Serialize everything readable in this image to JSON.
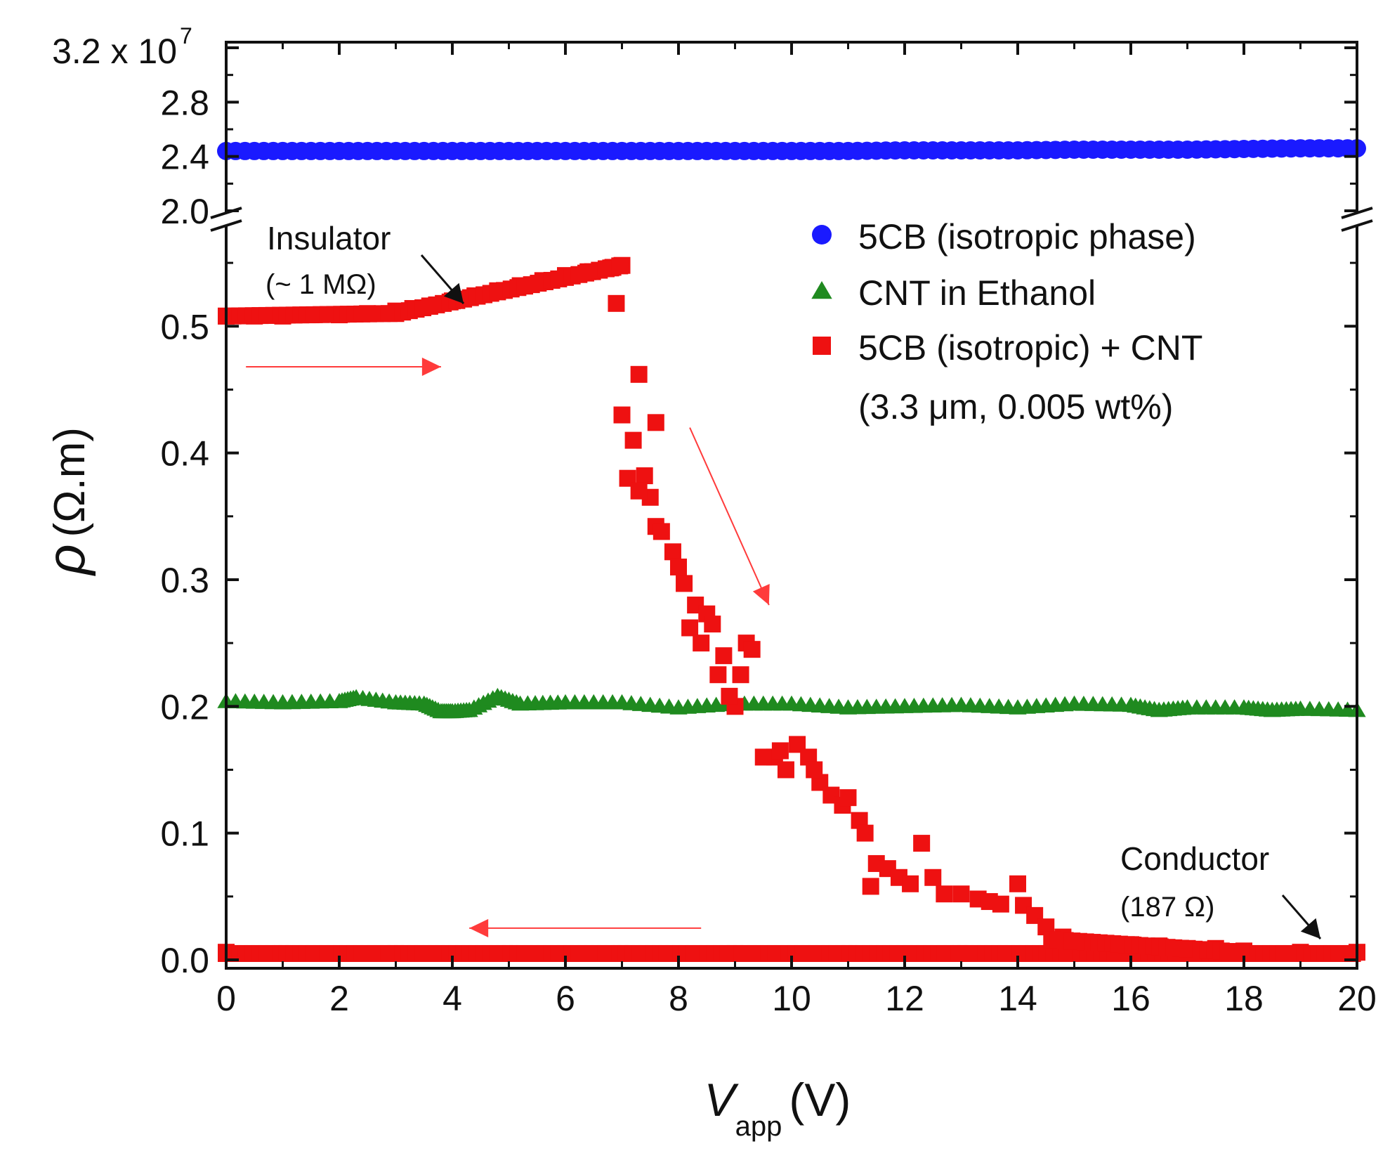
{
  "chart_data": {
    "type": "scatter",
    "title": "",
    "xlabel_symbol": "V",
    "xlabel_sub": "app",
    "xlabel_unit": "(V)",
    "ylabel_symbol": "ρ",
    "ylabel_unit": "(Ω.m)",
    "xlim": [
      0,
      20
    ],
    "x_ticks": [
      "0",
      "2",
      "4",
      "6",
      "8",
      "10",
      "12",
      "14",
      "16",
      "18",
      "20"
    ],
    "ylim_lower": [
      0,
      0.58
    ],
    "y_ticks_lower": [
      "0.0",
      "0.1",
      "0.2",
      "0.3",
      "0.4",
      "0.5"
    ],
    "ylim_upper": [
      2.0,
      3.2
    ],
    "y_ticks_upper": [
      "3.2 x 10",
      "2.8",
      "2.4",
      "2.0"
    ],
    "y_upper_exponent": "7",
    "y_break": true,
    "legend_position": "top-right",
    "series": [
      {
        "name": "5CB (isotropic phase)",
        "marker": "circle",
        "color": "#1a1aff",
        "panel": "upper",
        "x": [
          0,
          1,
          2,
          3,
          4,
          5,
          6,
          7,
          8,
          9,
          10,
          11,
          12,
          13,
          14,
          15,
          16,
          17,
          18,
          19,
          20
        ],
        "y": [
          2.44,
          2.44,
          2.44,
          2.44,
          2.44,
          2.44,
          2.44,
          2.44,
          2.44,
          2.44,
          2.44,
          2.44,
          2.445,
          2.445,
          2.445,
          2.45,
          2.45,
          2.45,
          2.455,
          2.46,
          2.46
        ]
      },
      {
        "name": "CNT in Ethanol",
        "marker": "triangle",
        "color": "#1f8a1f",
        "panel": "lower",
        "x": [
          0,
          1,
          2,
          2.3,
          3,
          3.5,
          3.8,
          4,
          4.3,
          4.8,
          5.2,
          6,
          7,
          8,
          9,
          10,
          11,
          12,
          13,
          14,
          15,
          16,
          16.5,
          17,
          18,
          18.5,
          19,
          20
        ],
        "y": [
          0.204,
          0.203,
          0.204,
          0.207,
          0.203,
          0.202,
          0.196,
          0.196,
          0.197,
          0.208,
          0.202,
          0.203,
          0.203,
          0.199,
          0.202,
          0.202,
          0.199,
          0.2,
          0.201,
          0.199,
          0.202,
          0.201,
          0.197,
          0.199,
          0.199,
          0.197,
          0.198,
          0.197
        ]
      },
      {
        "name": "5CB (isotropic) + CNT",
        "name_line2": "(3.3 μm, 0.005 wt%)",
        "marker": "square",
        "color": "#ee1111",
        "panel": "lower",
        "x": [
          0,
          0.5,
          1,
          1.5,
          2,
          2.5,
          3,
          3.3,
          3.6,
          4,
          4.4,
          4.8,
          5.2,
          5.6,
          6,
          6.4,
          6.8,
          7,
          6.9,
          7.3,
          7,
          7.6,
          7.2,
          7.1,
          7.4,
          7.5,
          7.3,
          7.6,
          7.7,
          7.9,
          8,
          8.1,
          8.3,
          8.2,
          8.5,
          8.6,
          8.4,
          8.8,
          8.7,
          9,
          9.2,
          9.1,
          8.9,
          9.3,
          9.7,
          9.5,
          9.9,
          10.1,
          9.8,
          10.3,
          10.5,
          10.4,
          10.7,
          10.9,
          11,
          11.2,
          11.3,
          11.5,
          11.4,
          11.7,
          11.9,
          12.1,
          12.3,
          12.5,
          12.7,
          13,
          13.3,
          13.5,
          13.7,
          14,
          14.1,
          14.3,
          14.5,
          14.8,
          15,
          15.5,
          16,
          16.5,
          17,
          17.5,
          18,
          19,
          20,
          19,
          17,
          15,
          13,
          11,
          9,
          7,
          5,
          3,
          1,
          0
        ],
        "y": [
          0.508,
          0.508,
          0.508,
          0.509,
          0.509,
          0.51,
          0.512,
          0.514,
          0.516,
          0.52,
          0.524,
          0.528,
          0.532,
          0.536,
          0.54,
          0.543,
          0.546,
          0.548,
          0.518,
          0.462,
          0.43,
          0.424,
          0.41,
          0.38,
          0.382,
          0.365,
          0.37,
          0.342,
          0.338,
          0.322,
          0.31,
          0.297,
          0.28,
          0.262,
          0.273,
          0.265,
          0.25,
          0.24,
          0.225,
          0.2,
          0.25,
          0.225,
          0.208,
          0.245,
          0.16,
          0.16,
          0.15,
          0.17,
          0.165,
          0.16,
          0.14,
          0.15,
          0.13,
          0.122,
          0.128,
          0.11,
          0.1,
          0.076,
          0.058,
          0.072,
          0.065,
          0.06,
          0.092,
          0.065,
          0.052,
          0.052,
          0.048,
          0.046,
          0.044,
          0.06,
          0.043,
          0.035,
          0.026,
          0.018,
          0.013,
          0.012,
          0.012,
          0.011,
          0.009,
          0.009,
          0.007,
          0.006,
          0.006,
          0.005,
          0.005,
          0.005,
          0.005,
          0.005,
          0.005,
          0.005,
          0.005,
          0.005,
          0.005,
          0.006
        ]
      }
    ],
    "annotations": {
      "insulator_label": "Insulator",
      "insulator_value": "(~ 1 MΩ)",
      "conductor_label": "Conductor",
      "conductor_value": "(187 Ω)"
    }
  }
}
